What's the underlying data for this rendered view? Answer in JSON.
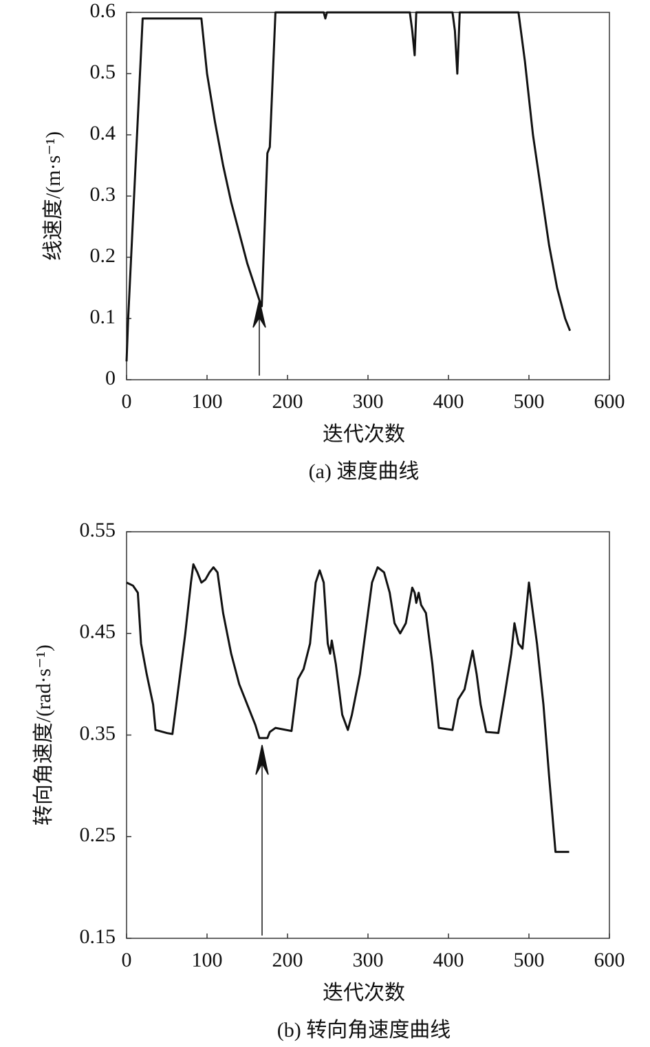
{
  "chart_data": [
    {
      "type": "line",
      "xlabel": "迭代次数",
      "ylabel": "线速度/(m·s⁻¹)",
      "caption": "(a) 速度曲线",
      "xlim": [
        0,
        600
      ],
      "xticks": [
        0,
        100,
        200,
        300,
        400,
        500,
        600
      ],
      "ylim": [
        0,
        0.6
      ],
      "yticks": [
        0,
        0.1,
        0.2,
        0.3,
        0.4,
        0.5,
        0.6
      ],
      "color": "#111111",
      "x": [
        0,
        2,
        20,
        93,
        100,
        110,
        120,
        130,
        140,
        150,
        160,
        165,
        168,
        175,
        178,
        185,
        245,
        247,
        249,
        352,
        355,
        358,
        360,
        405,
        408,
        411,
        414,
        487,
        495,
        505,
        515,
        525,
        535,
        545,
        551
      ],
      "values": [
        0.03,
        0.1,
        0.59,
        0.59,
        0.5,
        0.42,
        0.35,
        0.29,
        0.24,
        0.19,
        0.15,
        0.13,
        0.12,
        0.37,
        0.38,
        0.6,
        0.6,
        0.59,
        0.6,
        0.6,
        0.57,
        0.53,
        0.6,
        0.6,
        0.57,
        0.5,
        0.6,
        0.6,
        0.52,
        0.4,
        0.31,
        0.22,
        0.15,
        0.1,
        0.08
      ]
    },
    {
      "type": "line",
      "xlabel": "迭代次数",
      "ylabel": "转向角速度/(rad·s⁻¹)",
      "caption": "(b) 转向角速度曲线",
      "xlim": [
        0,
        600
      ],
      "xticks": [
        0,
        100,
        200,
        300,
        400,
        500,
        600
      ],
      "ylim": [
        0.15,
        0.55
      ],
      "yticks": [
        0.15,
        0.25,
        0.35,
        0.45,
        0.55
      ],
      "color": "#111111",
      "x": [
        0,
        8,
        14,
        18,
        25,
        33,
        36,
        50,
        57,
        65,
        73,
        80,
        83,
        88,
        93,
        98,
        103,
        108,
        113,
        120,
        130,
        140,
        150,
        160,
        165,
        175,
        178,
        185,
        205,
        213,
        220,
        228,
        235,
        240,
        245,
        250,
        253,
        255,
        260,
        268,
        275,
        280,
        290,
        300,
        305,
        312,
        320,
        327,
        333,
        340,
        347,
        355,
        358,
        360,
        363,
        366,
        372,
        380,
        388,
        405,
        412,
        420,
        430,
        435,
        440,
        447,
        462,
        470,
        478,
        482,
        487,
        492,
        500,
        510,
        518,
        525,
        533,
        550
      ],
      "values": [
        0.5,
        0.497,
        0.49,
        0.44,
        0.41,
        0.38,
        0.355,
        0.352,
        0.351,
        0.4,
        0.45,
        0.5,
        0.518,
        0.51,
        0.5,
        0.503,
        0.51,
        0.515,
        0.51,
        0.47,
        0.43,
        0.4,
        0.38,
        0.36,
        0.347,
        0.347,
        0.353,
        0.357,
        0.354,
        0.405,
        0.415,
        0.44,
        0.5,
        0.512,
        0.5,
        0.44,
        0.43,
        0.443,
        0.42,
        0.37,
        0.355,
        0.37,
        0.41,
        0.47,
        0.5,
        0.515,
        0.51,
        0.49,
        0.46,
        0.45,
        0.46,
        0.495,
        0.49,
        0.48,
        0.49,
        0.478,
        0.47,
        0.42,
        0.357,
        0.355,
        0.385,
        0.395,
        0.433,
        0.41,
        0.38,
        0.353,
        0.352,
        0.39,
        0.43,
        0.46,
        0.44,
        0.435,
        0.5,
        0.44,
        0.38,
        0.31,
        0.235,
        0.235
      ]
    }
  ]
}
